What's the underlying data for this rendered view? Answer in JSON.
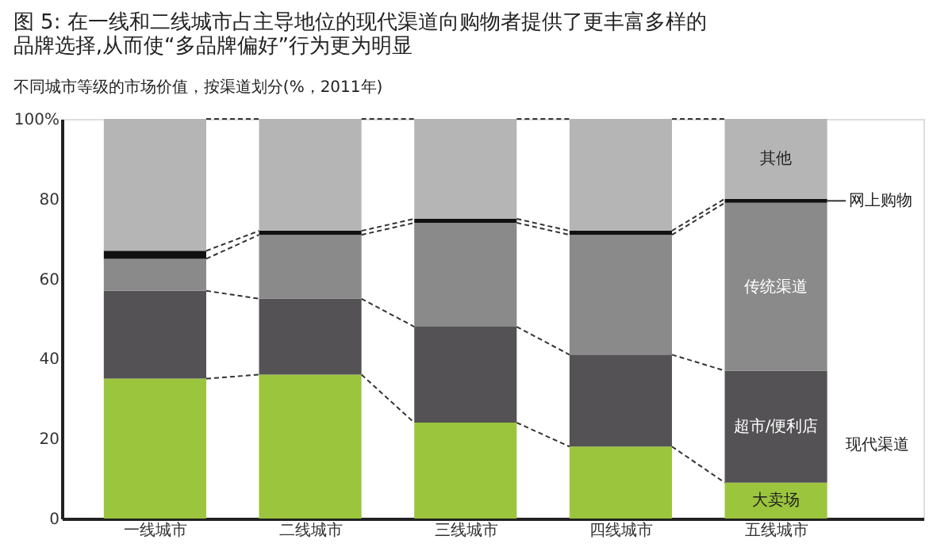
{
  "chart_data": {
    "type": "bar",
    "stacked": true,
    "title": "图 5: 在一线和二线城市占主导地位的现代渠道向购物者提供了更丰富多样的品牌选择,从而使“多品牌偏好”行为更为明显",
    "subtitle": "不同城市等级的市场价值，按渠道划分(%，2011年)",
    "categories": [
      "一线城市",
      "二线城市",
      "三线城市",
      "四线城市",
      "五线城市"
    ],
    "series": [
      {
        "name": "大卖场",
        "color": "#9bc53d",
        "values": [
          35,
          36,
          24,
          18,
          9
        ]
      },
      {
        "name": "超市/便利店",
        "color": "#545254",
        "values": [
          22,
          19,
          24,
          23,
          28
        ]
      },
      {
        "name": "传统渠道",
        "color": "#8a8a8a",
        "values": [
          8,
          16,
          26,
          30,
          42
        ]
      },
      {
        "name": "网上购物",
        "color": "#111111",
        "values": [
          2,
          1,
          1,
          1,
          1
        ]
      },
      {
        "name": "其他",
        "color": "#b5b5b5",
        "values": [
          33,
          28,
          25,
          28,
          20
        ]
      }
    ],
    "annotations": [
      "现代渠道"
    ],
    "ylim": [
      0,
      100
    ],
    "yticks": [
      0,
      20,
      40,
      60,
      80,
      {
        "value": 100,
        "label": "100%"
      }
    ],
    "grid": false,
    "legend": false
  }
}
